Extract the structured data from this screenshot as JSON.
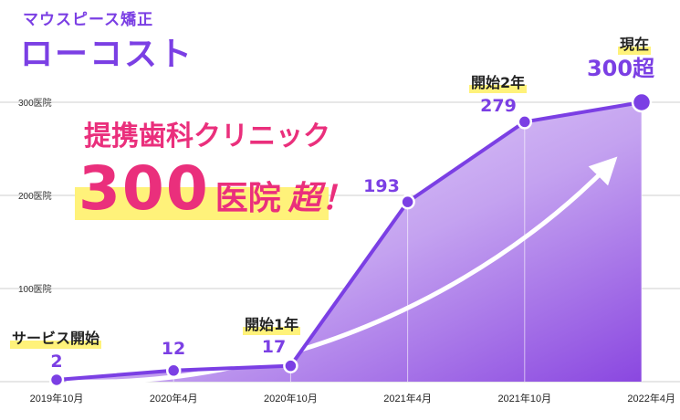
{
  "brand": {
    "tagline": "マウスピース矯正",
    "name": "ローコスト"
  },
  "promo": {
    "line1": "提携歯科クリニック",
    "number": "300",
    "unit": "医院",
    "suffix": "超！"
  },
  "annotations": {
    "start": "サービス開始",
    "year1": "開始1年",
    "year2": "開始2年",
    "now": "現在"
  },
  "colors": {
    "line": "#7b3fe4",
    "fill_light": "#eadcfb",
    "fill_dark": "#8a47e0",
    "accent_pink": "#ea2f7c",
    "highlight": "#fff27a",
    "grid": "#cfcfcf"
  },
  "chart_data": {
    "type": "area",
    "x": [
      "2019年10月",
      "2020年4月",
      "2020年10月",
      "2021年4月",
      "2021年10月",
      "2022年4月"
    ],
    "values": [
      2,
      12,
      17,
      193,
      279,
      300
    ],
    "data_labels": [
      "2",
      "12",
      "17",
      "193",
      "279",
      "300超"
    ],
    "yticks": [
      "100医院",
      "200医院",
      "300医院"
    ],
    "ytick_values": [
      100,
      200,
      300
    ],
    "ylim": [
      0,
      300
    ]
  }
}
